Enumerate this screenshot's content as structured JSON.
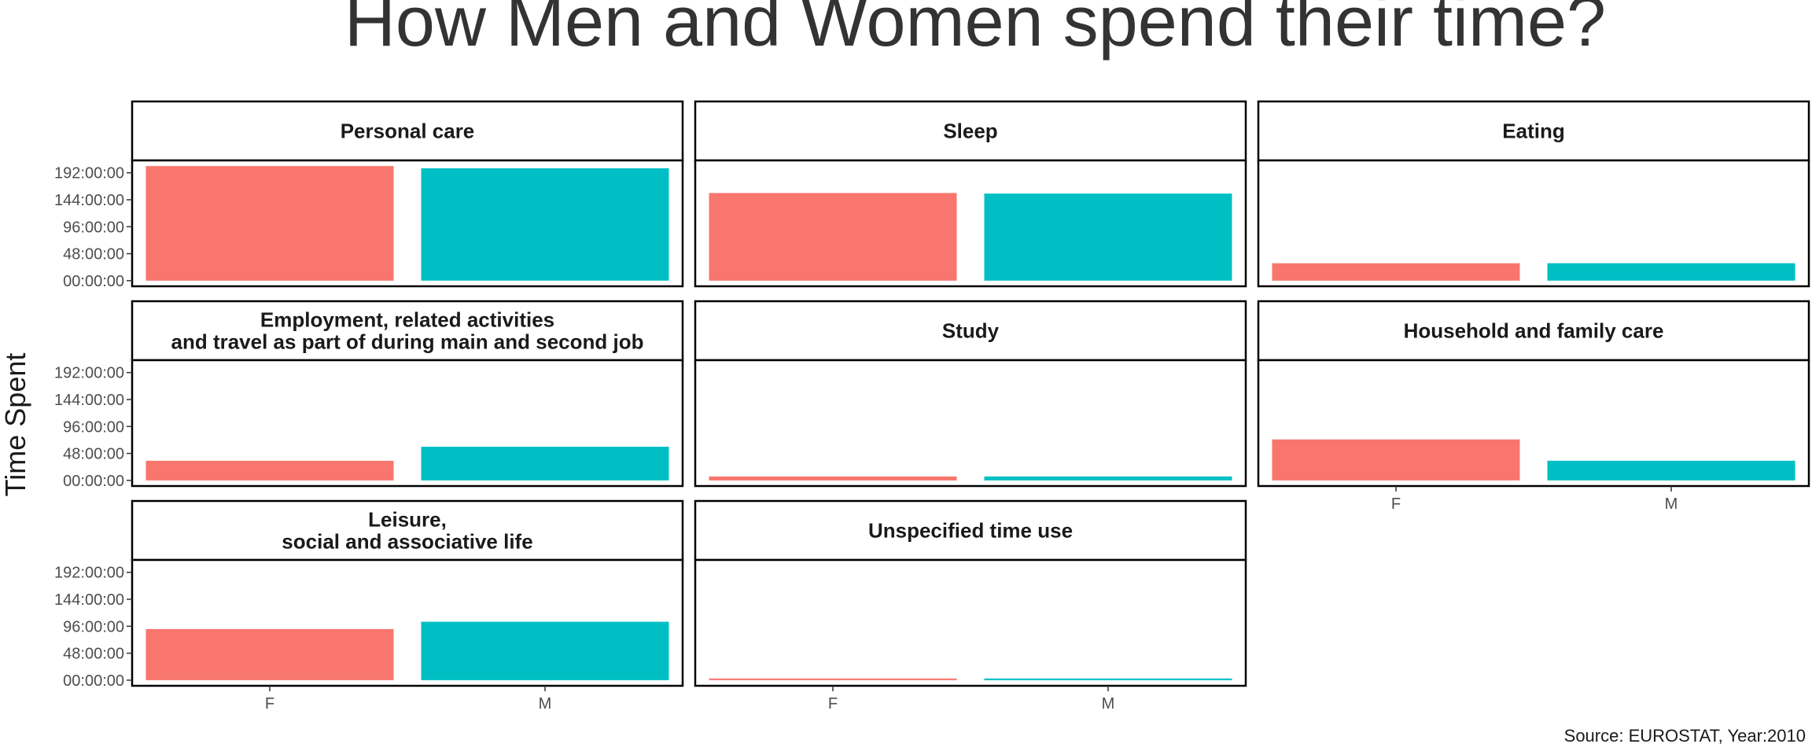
{
  "chart_data": {
    "type": "bar",
    "title": "How Men and Women spend their time?",
    "ylabel": "Time Spent",
    "xlabel": "",
    "caption": "Source: EUROSTAT, Year:2010",
    "categories": [
      "F",
      "M"
    ],
    "y_ticks": [
      {
        "hours": 0,
        "label": "00:00:00"
      },
      {
        "hours": 48,
        "label": "48:00:00"
      },
      {
        "hours": 96,
        "label": "96:00:00"
      },
      {
        "hours": 144,
        "label": "144:00:00"
      },
      {
        "hours": 192,
        "label": "192:00:00"
      }
    ],
    "ylim": [
      -10,
      214
    ],
    "units": "hours",
    "colors": {
      "F": "#F8766D",
      "M": "#00BFC4"
    },
    "legend": "none",
    "grid": false,
    "ncol": 3,
    "facets": [
      {
        "title": [
          "Personal care"
        ],
        "values": [
          204,
          200
        ]
      },
      {
        "title": [
          "Sleep"
        ],
        "values": [
          156,
          155
        ]
      },
      {
        "title": [
          "Eating"
        ],
        "values": [
          31,
          31
        ]
      },
      {
        "title": [
          "Employment, related activities",
          "and travel as part of during main and second job"
        ],
        "values": [
          35,
          60
        ]
      },
      {
        "title": [
          "Study"
        ],
        "values": [
          7,
          7
        ]
      },
      {
        "title": [
          "Household and family care"
        ],
        "values": [
          73,
          35
        ]
      },
      {
        "title": [
          "Leisure,",
          "social and associative life"
        ],
        "values": [
          91,
          104
        ]
      },
      {
        "title": [
          "Unspecified time use"
        ],
        "values": [
          3,
          3
        ]
      }
    ]
  }
}
